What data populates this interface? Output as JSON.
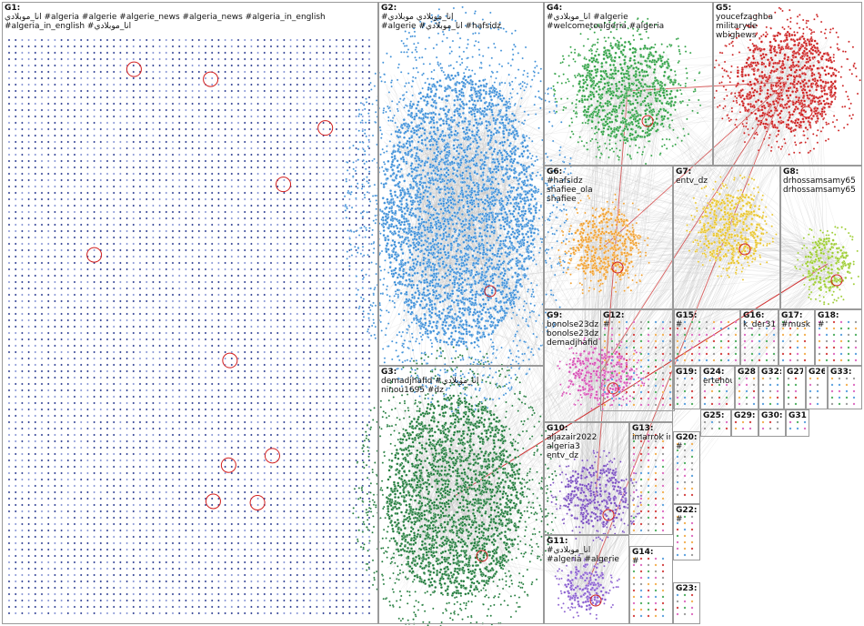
{
  "graph": {
    "background": "#ffffff",
    "edge_color": "#b9b9b9",
    "groups": [
      {
        "id": "G1:",
        "color": "#5b5bd6",
        "lines": [
          "أنا_موبلادي #algeria #algerie #algerie_news #algeria_news #algeria_in_english",
          "#algeria_in_english #أنا_موبلادي"
        ]
      },
      {
        "id": "G2:",
        "color": "#3d8fd8",
        "lines": [
          "#أنا_موبلادي موبلادي",
          "#algerie #أنا_موبلادي #hafsidz"
        ]
      },
      {
        "id": "G3:",
        "color": "#1f7a3a",
        "lines": [
          "demadjhafid #أنا_موبلادي",
          "ninou1695 #dz"
        ]
      },
      {
        "id": "G4:",
        "color": "#2ea043",
        "lines": [
          "#أنا_موبلادي #algerie",
          "#welcometoalgeria #algeria"
        ]
      },
      {
        "id": "G5:",
        "color": "#cc1f1f",
        "lines": [
          "youcefzaghba",
          "militaryde",
          "wbighews"
        ]
      },
      {
        "id": "G6:",
        "color": "#f0a030",
        "lines": [
          "#hafsidz",
          "shafiee_ola",
          "shafiee"
        ]
      },
      {
        "id": "G7:",
        "color": "#e8c42c",
        "lines": [
          "entv_dz"
        ]
      },
      {
        "id": "G8:",
        "color": "#9ccc30",
        "lines": [
          "drhossamsamy65",
          "drhossamsamy65"
        ]
      },
      {
        "id": "G9:",
        "color": "#d64fb4",
        "lines": [
          "bonolse23dz",
          "bonolse23dz",
          "demadjhafid"
        ]
      },
      {
        "id": "G10:",
        "color": "#7a4fc0",
        "lines": [
          "aljazair2022",
          "algeria3",
          "entv_dz"
        ]
      },
      {
        "id": "G11:",
        "color": "#8a5fd0",
        "lines": [
          "#أنا_موبلادي",
          "#algeria #algerie"
        ]
      },
      {
        "id": "G12:",
        "color": "#888888",
        "lines": [
          "#"
        ]
      },
      {
        "id": "G13:",
        "color": "#888888",
        "lines": [
          "imarrok imarrok"
        ]
      },
      {
        "id": "G14:",
        "color": "#888888",
        "lines": [
          "#"
        ]
      },
      {
        "id": "G15:",
        "color": "#888888",
        "lines": [
          "#"
        ]
      },
      {
        "id": "G16:",
        "color": "#888888",
        "lines": [
          "k_der31"
        ]
      },
      {
        "id": "G17:",
        "color": "#888888",
        "lines": [
          "#musk #ghtlnel"
        ]
      },
      {
        "id": "G18:",
        "color": "#888888",
        "lines": [
          "#"
        ]
      },
      {
        "id": "G19:",
        "color": "#888888",
        "lines": [
          ""
        ]
      },
      {
        "id": "G20:",
        "color": "#888888",
        "lines": [
          "#"
        ]
      },
      {
        "id": "G22:",
        "color": "#888888",
        "lines": [
          "#"
        ]
      },
      {
        "id": "G23:",
        "color": "#888888",
        "lines": [
          ""
        ]
      },
      {
        "id": "G24:",
        "color": "#888888",
        "lines": [
          "ertehou1"
        ]
      },
      {
        "id": "G25:",
        "color": "#888888",
        "lines": [
          ""
        ]
      },
      {
        "id": "G26:",
        "color": "#888888",
        "lines": [
          ""
        ]
      },
      {
        "id": "G27:",
        "color": "#888888",
        "lines": [
          ""
        ]
      },
      {
        "id": "G28:",
        "color": "#888888",
        "lines": [
          ""
        ]
      },
      {
        "id": "G29:",
        "color": "#888888",
        "lines": [
          ""
        ]
      },
      {
        "id": "G30:",
        "color": "#888888",
        "lines": [
          ""
        ]
      },
      {
        "id": "G31:",
        "color": "#888888",
        "lines": [
          ""
        ]
      },
      {
        "id": "G32:",
        "color": "#888888",
        "lines": [
          ""
        ]
      },
      {
        "id": "G33:",
        "color": "#888888",
        "lines": [
          ""
        ]
      }
    ]
  }
}
